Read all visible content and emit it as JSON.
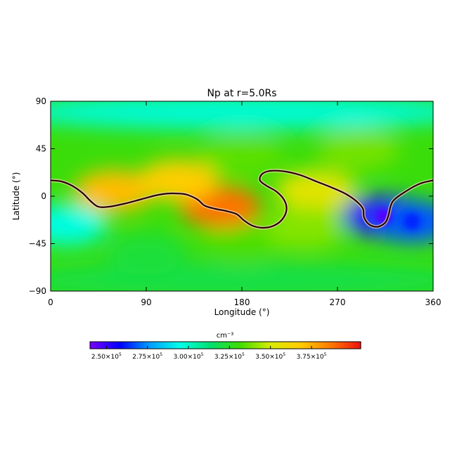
{
  "chart_data": {
    "type": "heatmap",
    "title": "Np at r=5.0Rs",
    "xlabel": "Longitude (°)",
    "ylabel": "Latitude (°)",
    "xlim": [
      0,
      360
    ],
    "ylim": [
      -90,
      90
    ],
    "x_ticks": [
      0,
      90,
      180,
      270,
      360
    ],
    "y_ticks": [
      -90,
      -45,
      0,
      45,
      90
    ],
    "x_tick_labels": [
      "0",
      "90",
      "180",
      "270",
      "360"
    ],
    "y_tick_labels": [
      "−90",
      "−45",
      "0",
      "45",
      "90"
    ],
    "colorbar": {
      "unit": "cm⁻³",
      "min": 240000,
      "max": 405000,
      "ticks": [
        250000,
        275000,
        300000,
        325000,
        350000,
        375000
      ],
      "tick_mantissas": [
        "2.50",
        "2.75",
        "3.00",
        "3.25",
        "3.50",
        "3.75"
      ],
      "tick_multiplier": "×10",
      "tick_exponent": "5",
      "colors": [
        "#7a00ff",
        "#0000ff",
        "#00a0ff",
        "#00ffe8",
        "#00e070",
        "#40dd00",
        "#d8ec00",
        "#ffcc00",
        "#ff7a00",
        "#ee1010"
      ]
    },
    "neutral_line": [
      [
        0,
        15
      ],
      [
        10,
        14
      ],
      [
        20,
        10
      ],
      [
        30,
        3
      ],
      [
        38,
        -5
      ],
      [
        45,
        -10
      ],
      [
        55,
        -10
      ],
      [
        70,
        -7
      ],
      [
        85,
        -3
      ],
      [
        100,
        1
      ],
      [
        110,
        2.5
      ],
      [
        120,
        2.5
      ],
      [
        128,
        1.5
      ],
      [
        138,
        -3
      ],
      [
        145,
        -9
      ],
      [
        155,
        -12
      ],
      [
        165,
        -14
      ],
      [
        175,
        -17
      ],
      [
        182,
        -23
      ],
      [
        190,
        -28
      ],
      [
        200,
        -30
      ],
      [
        210,
        -28
      ],
      [
        218,
        -22
      ],
      [
        222,
        -13
      ],
      [
        220,
        -4
      ],
      [
        213,
        4
      ],
      [
        203,
        10
      ],
      [
        197,
        15
      ],
      [
        199,
        21
      ],
      [
        207,
        24
      ],
      [
        220,
        23.5
      ],
      [
        235,
        20
      ],
      [
        250,
        14
      ],
      [
        265,
        8
      ],
      [
        278,
        2
      ],
      [
        288,
        -5
      ],
      [
        294,
        -12
      ],
      [
        295,
        -20
      ],
      [
        300,
        -27
      ],
      [
        308,
        -29
      ],
      [
        315,
        -25
      ],
      [
        318,
        -18
      ],
      [
        322,
        -5
      ],
      [
        335,
        5
      ],
      [
        348,
        12
      ],
      [
        360,
        15
      ]
    ],
    "regions": [
      {
        "lon": 180,
        "lat": 80,
        "value": 298000
      },
      {
        "lon": 180,
        "lat": -80,
        "value": 320000
      },
      {
        "lon": 180,
        "lat": 40,
        "value": 335000
      },
      {
        "lon": 180,
        "lat": -45,
        "value": 333000
      },
      {
        "lon": 160,
        "lat": -10,
        "value": 388000
      },
      {
        "lon": 60,
        "lat": 5,
        "value": 372000
      },
      {
        "lon": 120,
        "lat": 15,
        "value": 368000
      },
      {
        "lon": 250,
        "lat": 5,
        "value": 355000
      },
      {
        "lon": 240,
        "lat": -30,
        "value": 340000
      },
      {
        "lon": 313,
        "lat": -19,
        "value": 252000
      },
      {
        "lon": 340,
        "lat": -24,
        "value": 268000
      },
      {
        "lon": 15,
        "lat": -27,
        "value": 296000
      },
      {
        "lon": 290,
        "lat": 45,
        "value": 338000
      },
      {
        "lon": 90,
        "lat": -55,
        "value": 322000
      }
    ]
  }
}
